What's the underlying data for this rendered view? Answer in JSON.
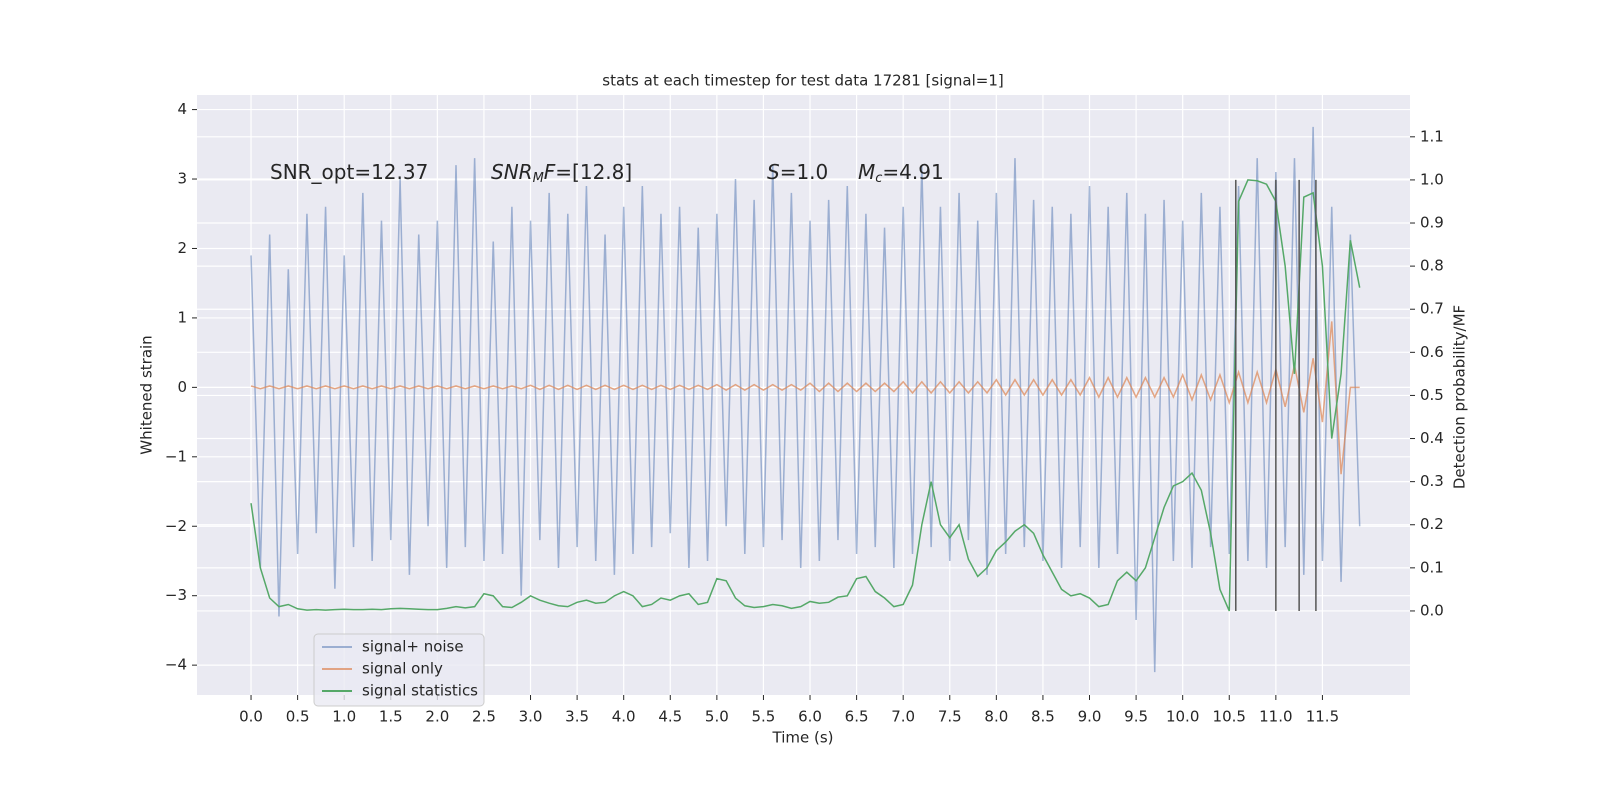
{
  "chart_data": {
    "type": "line",
    "title": "stats at each timestep for test data 17281 [signal=1]",
    "xlabel": "Time (s)",
    "ylabel": "Whitened strain",
    "y2label": "Detection probability/MF",
    "xlim": [
      -0.58,
      12.44
    ],
    "ylim": [
      -4.43,
      4.21
    ],
    "y2lim": [
      -0.195,
      1.197
    ],
    "xticks": [
      {
        "value": 0,
        "label": "0.0"
      },
      0.5,
      {
        "value": 1,
        "label": "1.0"
      },
      1.5,
      {
        "value": 2,
        "label": "2.0"
      },
      2.5,
      {
        "value": 3,
        "label": "3.0"
      },
      3.5,
      {
        "value": 4,
        "label": "4.0"
      },
      4.5,
      {
        "value": 5,
        "label": "5.0"
      },
      5.5,
      {
        "value": 6,
        "label": "6.0"
      },
      6.5,
      {
        "value": 7,
        "label": "7.0"
      },
      7.5,
      {
        "value": 8,
        "label": "8.0"
      },
      8.5,
      {
        "value": 9,
        "label": "9.0"
      },
      9.5,
      {
        "value": 10,
        "label": "10.0"
      },
      10.5,
      {
        "value": 11,
        "label": "11.0"
      },
      11.5
    ],
    "yticks": [
      {
        "value": -4,
        "label": "−4"
      },
      {
        "value": -3,
        "label": "−3"
      },
      {
        "value": -2,
        "label": "−2"
      },
      {
        "value": -1,
        "label": "−1"
      },
      0,
      1,
      2,
      3,
      4
    ],
    "y2ticks": [
      {
        "value": 0,
        "label": "0.0"
      },
      0.1,
      0.2,
      0.3,
      0.4,
      0.5,
      0.6,
      0.7,
      0.8,
      0.9,
      {
        "value": 1,
        "label": "1.0"
      },
      1.1
    ],
    "grid": true,
    "legend": "lower left",
    "x": [
      0.0,
      0.1,
      0.2,
      0.3,
      0.4,
      0.5,
      0.6,
      0.7,
      0.8,
      0.9,
      1.0,
      1.1,
      1.2,
      1.3,
      1.4,
      1.5,
      1.6,
      1.7,
      1.8,
      1.9,
      2.0,
      2.1,
      2.2,
      2.3,
      2.4,
      2.5,
      2.6,
      2.7,
      2.8,
      2.9,
      3.0,
      3.1,
      3.2,
      3.3,
      3.4,
      3.5,
      3.6,
      3.7,
      3.8,
      3.9,
      4.0,
      4.1,
      4.2,
      4.3,
      4.4,
      4.5,
      4.6,
      4.7,
      4.8,
      4.9,
      5.0,
      5.1,
      5.2,
      5.3,
      5.4,
      5.5,
      5.6,
      5.7,
      5.8,
      5.9,
      6.0,
      6.1,
      6.2,
      6.3,
      6.4,
      6.5,
      6.6,
      6.7,
      6.8,
      6.9,
      7.0,
      7.1,
      7.2,
      7.3,
      7.4,
      7.5,
      7.6,
      7.7,
      7.8,
      7.9,
      8.0,
      8.1,
      8.2,
      8.3,
      8.4,
      8.5,
      8.6,
      8.7,
      8.8,
      8.9,
      9.0,
      9.1,
      9.2,
      9.3,
      9.4,
      9.5,
      9.6,
      9.7,
      9.8,
      9.9,
      10.0,
      10.1,
      10.2,
      10.3,
      10.4,
      10.5,
      10.6,
      10.7,
      10.8,
      10.9,
      11.0,
      11.1,
      11.2,
      11.3,
      11.4,
      11.5,
      11.6,
      11.7,
      11.8,
      11.9
    ],
    "series": [
      {
        "name": "signal+ noise",
        "color": "#4c72b0",
        "alpha": 0.5,
        "values": [
          1.9,
          -2.6,
          2.2,
          -3.3,
          1.7,
          -2.4,
          2.5,
          -2.1,
          2.6,
          -2.9,
          1.9,
          -2.3,
          2.8,
          -2.5,
          2.4,
          -2.2,
          3.0,
          -2.7,
          2.2,
          -2.0,
          2.4,
          -2.6,
          3.2,
          -2.3,
          3.3,
          -2.5,
          2.1,
          -2.4,
          2.6,
          -3.0,
          2.4,
          -2.2,
          2.8,
          -2.6,
          2.5,
          -2.3,
          2.9,
          -2.5,
          2.2,
          -2.7,
          2.6,
          -2.4,
          2.9,
          -2.3,
          2.5,
          -2.1,
          2.6,
          -2.6,
          2.3,
          -2.5,
          2.5,
          -2.0,
          3.0,
          -2.4,
          2.7,
          -2.3,
          3.2,
          -2.2,
          2.8,
          -2.6,
          2.4,
          -2.5,
          2.7,
          -2.2,
          2.9,
          -2.4,
          2.5,
          -2.3,
          2.3,
          -2.6,
          2.6,
          -2.4,
          3.2,
          -2.3,
          2.6,
          -2.5,
          2.8,
          -2.2,
          2.4,
          -2.7,
          2.8,
          -2.4,
          3.3,
          -2.3,
          2.7,
          -2.5,
          2.6,
          -2.6,
          2.5,
          -2.3,
          2.9,
          -2.6,
          2.6,
          -2.4,
          2.8,
          -3.35,
          2.5,
          -4.1,
          2.7,
          -2.5,
          2.4,
          -2.6,
          2.8,
          -2.3,
          2.6,
          -2.4,
          2.9,
          -2.5,
          3.3,
          -2.6,
          3.1,
          -2.3,
          3.3,
          -2.7,
          3.75,
          -2.5,
          2.6,
          -2.8,
          2.2,
          -2.0
        ]
      },
      {
        "name": "signal only",
        "color": "#dd8452",
        "alpha": 0.7,
        "values": [
          0.02,
          -0.02,
          0.02,
          -0.02,
          0.02,
          -0.02,
          0.02,
          -0.02,
          0.02,
          -0.02,
          0.02,
          -0.02,
          0.02,
          -0.02,
          0.02,
          -0.02,
          0.02,
          -0.02,
          0.02,
          -0.02,
          0.02,
          -0.02,
          0.02,
          -0.02,
          0.02,
          -0.02,
          0.02,
          -0.02,
          0.02,
          -0.02,
          0.03,
          -0.03,
          0.03,
          -0.03,
          0.03,
          -0.03,
          0.03,
          -0.03,
          0.03,
          -0.03,
          0.03,
          -0.03,
          0.03,
          -0.03,
          0.03,
          -0.03,
          0.03,
          -0.03,
          0.03,
          -0.03,
          0.04,
          -0.04,
          0.04,
          -0.04,
          0.04,
          -0.04,
          0.04,
          -0.04,
          0.04,
          -0.04,
          0.06,
          -0.06,
          0.06,
          -0.06,
          0.06,
          -0.06,
          0.06,
          -0.06,
          0.06,
          -0.06,
          0.08,
          -0.08,
          0.08,
          -0.08,
          0.08,
          -0.08,
          0.08,
          -0.08,
          0.08,
          -0.08,
          0.11,
          -0.11,
          0.11,
          -0.11,
          0.11,
          -0.11,
          0.11,
          -0.11,
          0.11,
          -0.11,
          0.14,
          -0.14,
          0.14,
          -0.14,
          0.14,
          -0.14,
          0.14,
          -0.14,
          0.14,
          -0.14,
          0.18,
          -0.18,
          0.18,
          -0.18,
          0.18,
          -0.22,
          0.22,
          -0.22,
          0.22,
          -0.22,
          0.26,
          -0.28,
          0.32,
          -0.36,
          0.42,
          -0.5,
          0.95,
          -1.25,
          0,
          0
        ]
      },
      {
        "name": "signal statistics",
        "color": "#55a868",
        "alpha": 1,
        "axis": "y2",
        "values": [
          0.25,
          0.1,
          0.03,
          0.01,
          0.015,
          0.005,
          0.002,
          0.003,
          0.002,
          0.003,
          0.004,
          0.003,
          0.003,
          0.004,
          0.003,
          0.005,
          0.006,
          0.005,
          0.004,
          0.003,
          0.003,
          0.006,
          0.01,
          0.007,
          0.01,
          0.04,
          0.035,
          0.01,
          0.008,
          0.02,
          0.035,
          0.025,
          0.018,
          0.012,
          0.01,
          0.02,
          0.025,
          0.018,
          0.02,
          0.035,
          0.045,
          0.035,
          0.01,
          0.015,
          0.03,
          0.025,
          0.035,
          0.04,
          0.015,
          0.02,
          0.075,
          0.07,
          0.03,
          0.012,
          0.008,
          0.01,
          0.015,
          0.012,
          0.006,
          0.01,
          0.022,
          0.018,
          0.02,
          0.032,
          0.035,
          0.075,
          0.08,
          0.045,
          0.03,
          0.01,
          0.015,
          0.06,
          0.2,
          0.3,
          0.2,
          0.17,
          0.2,
          0.12,
          0.08,
          0.1,
          0.14,
          0.16,
          0.185,
          0.2,
          0.18,
          0.13,
          0.09,
          0.05,
          0.035,
          0.04,
          0.03,
          0.01,
          0.015,
          0.07,
          0.09,
          0.07,
          0.1,
          0.17,
          0.24,
          0.29,
          0.3,
          0.32,
          0.28,
          0.18,
          0.05,
          0.0,
          0.95,
          1.0,
          0.998,
          0.99,
          0.95,
          0.8,
          0.55,
          0.96,
          0.97,
          0.8,
          0.4,
          0.55,
          0.86,
          0.75
        ]
      }
    ],
    "vlines": {
      "x": [
        10.57,
        11.0,
        11.25,
        11.43
      ],
      "ymin": 0,
      "ymax": 1,
      "axis": "y2",
      "color": "#555555"
    },
    "annotations": [
      [
        {
          "text": "SNR_opt=12.37",
          "style": "normal"
        }
      ],
      [
        {
          "text": "SNR",
          "style": "italic"
        },
        {
          "text": "M",
          "style": "sub"
        },
        {
          "text": "F",
          "style": "italic"
        },
        {
          "text": "=[12.8]",
          "style": "normal"
        }
      ],
      [
        {
          "text": "S",
          "style": "italic"
        },
        {
          "text": "=1.0",
          "style": "normal"
        }
      ],
      [
        {
          "text": "M",
          "style": "italic"
        },
        {
          "text": "c",
          "style": "sub"
        },
        {
          "text": "=4.91",
          "style": "normal"
        }
      ]
    ]
  }
}
